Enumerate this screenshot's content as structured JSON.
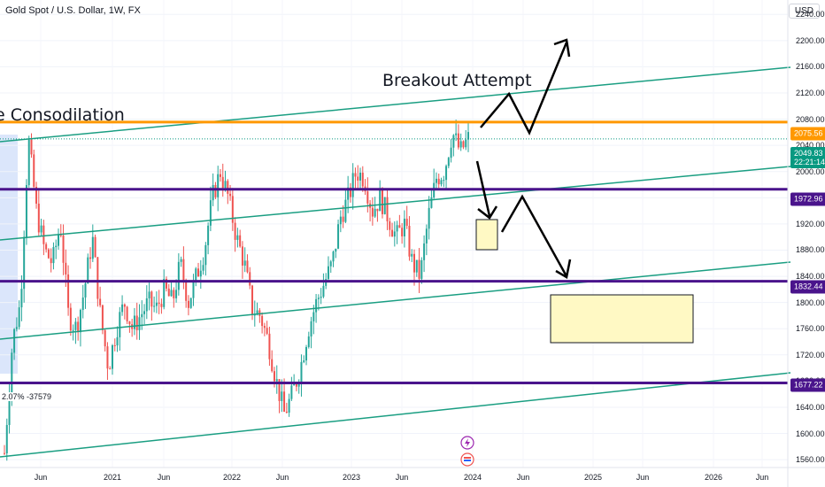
{
  "header": {
    "symbol_title": "Gold Spot / U.S. Dollar, 1W, FX",
    "currency": "USD"
  },
  "colors": {
    "up": "#26a69a",
    "down": "#ef5350",
    "channel": "#1a9e82",
    "resistance": "#ff9800",
    "support": "#4a148c",
    "box_fill": "#fff9c4",
    "box_stroke": "#131722",
    "last_price": "#089981",
    "shade": "#dbe6fb"
  },
  "annotations": {
    "breakout": "Breakout Attempt",
    "consolidation": "e Consodilation",
    "left_readout": "2.07% -37579"
  },
  "price_tags": {
    "resistance": "2075.56",
    "last_price": "2049.83",
    "countdown": "22:21:14",
    "level_1": "1972.96",
    "level_2": "1832.44",
    "level_3": "1677.22"
  },
  "icons": [
    "lightning-icon",
    "flag-icon"
  ],
  "chart_data": {
    "type": "candlestick",
    "x_labels": [
      "Jun",
      "2021",
      "Jun",
      "2022",
      "Jun",
      "2023",
      "Jun",
      "2024",
      "Jun",
      "2025",
      "Jun",
      "2026",
      "Jun"
    ],
    "y_ticks": [
      1560,
      1600,
      1640,
      1680,
      1720,
      1760,
      1800,
      1840,
      1880,
      1920,
      1960,
      2000,
      2040,
      2080,
      2120,
      2160,
      2200,
      2240
    ],
    "y_tick_labels": [
      "1560.00",
      "1600.00",
      "1640.00",
      "1680.00",
      "1720.00",
      "1760.00",
      "1800.00",
      "1840.00",
      "1880.00",
      "1920.00",
      "1960.00",
      "2000.00",
      "2040.00",
      "2080.00",
      "2120.00",
      "2160.00",
      "2200.00",
      "2240.00"
    ],
    "ylim": [
      1548,
      2262
    ],
    "horizontal_levels": [
      2075.56,
      1972.96,
      1832.44,
      1677.22
    ],
    "last_price": 2049.83,
    "close_path": [
      1570,
      1740,
      1800,
      2050,
      1940,
      1880,
      1860,
      1920,
      1780,
      1760,
      1820,
      1900,
      1780,
      1700,
      1760,
      1800,
      1760,
      1780,
      1800,
      1790,
      1820,
      1800,
      1860,
      1800,
      1840,
      1880,
      1960,
      2000,
      1960,
      1900,
      1860,
      1790,
      1780,
      1740,
      1680,
      1630,
      1660,
      1700,
      1760,
      1800,
      1830,
      1860,
      1930,
      1960,
      2000,
      1990,
      1940,
      1960,
      1930,
      1900,
      1920,
      1860,
      1840,
      1930,
      1990,
      2000,
      2060,
      2030,
      2050
    ]
  }
}
